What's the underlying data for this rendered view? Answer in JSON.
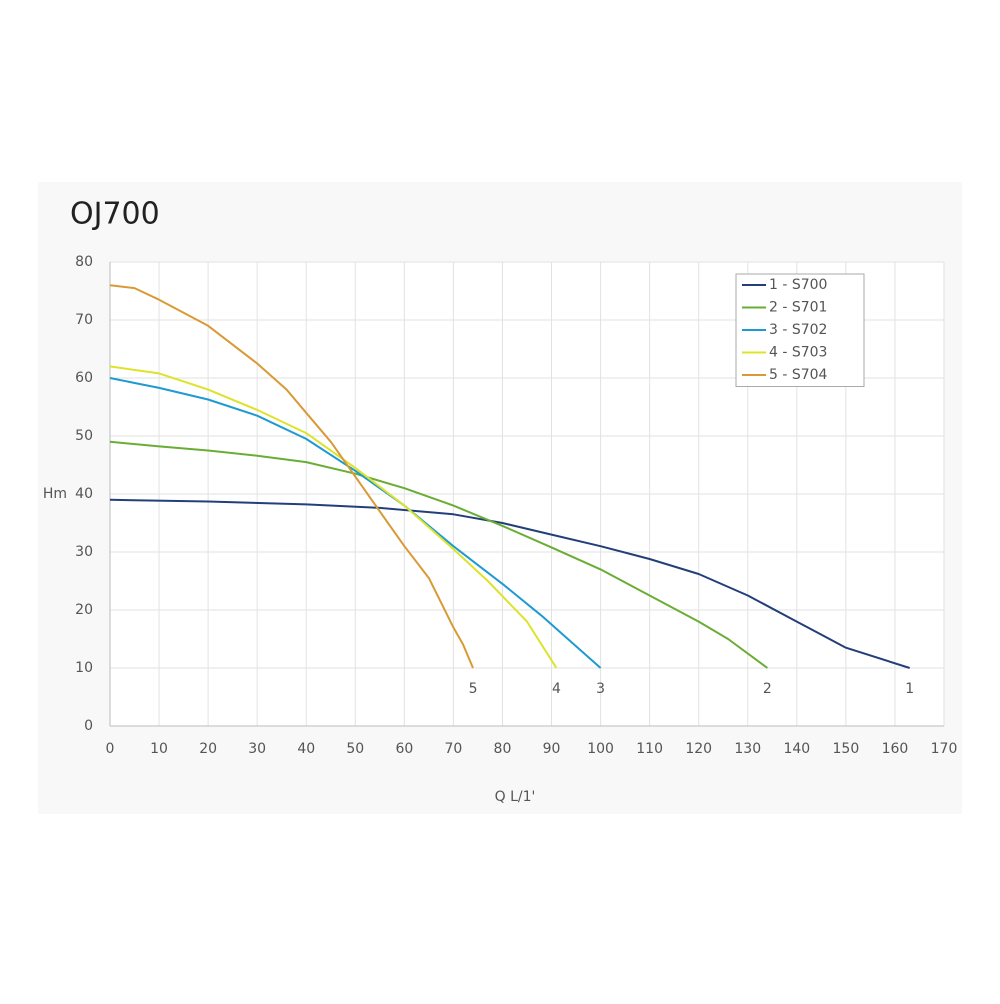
{
  "chart_data": {
    "type": "line",
    "title": "OJ700",
    "y_label": "Hm",
    "x_label": "Q L/1'",
    "xlim": [
      0,
      170
    ],
    "xticks": [
      0,
      10,
      20,
      30,
      40,
      50,
      60,
      70,
      80,
      90,
      100,
      110,
      120,
      130,
      140,
      150,
      160,
      170
    ],
    "ylim": [
      0,
      80
    ],
    "yticks": [
      0,
      10,
      20,
      30,
      40,
      50,
      60,
      70,
      80
    ],
    "grid": true,
    "legend": "upper right",
    "series": [
      {
        "name": "1 - S700",
        "label": "1",
        "color": "#233f7a",
        "x": [
          0,
          20,
          40,
          55,
          70,
          80,
          90,
          100,
          110,
          120,
          130,
          140,
          150,
          163
        ],
        "values": [
          39,
          38.7,
          38.2,
          37.6,
          36.5,
          35,
          33,
          31,
          28.8,
          26.2,
          22.5,
          18,
          13.5,
          10
        ]
      },
      {
        "name": "2 - S701",
        "label": "2",
        "color": "#6aad34",
        "x": [
          0,
          10,
          20,
          30,
          40,
          50,
          60,
          70,
          80,
          90,
          100,
          110,
          120,
          126,
          134
        ],
        "values": [
          49,
          48.2,
          47.5,
          46.6,
          45.5,
          43.5,
          41,
          38,
          34.5,
          30.8,
          27,
          22.5,
          18,
          15,
          10
        ]
      },
      {
        "name": "3 - S702",
        "label": "3",
        "color": "#1e9ad2",
        "x": [
          0,
          10,
          20,
          30,
          40,
          50,
          60,
          70,
          80,
          88,
          100
        ],
        "values": [
          60,
          58.3,
          56.3,
          53.5,
          49.5,
          44,
          38,
          31,
          24.5,
          19,
          10
        ]
      },
      {
        "name": "4 - S703",
        "label": "4",
        "color": "#dde32a",
        "x": [
          0,
          10,
          20,
          30,
          40,
          50,
          60,
          70,
          77,
          85,
          91
        ],
        "values": [
          62,
          60.8,
          58,
          54.5,
          50.5,
          44.5,
          38,
          30.5,
          25,
          18,
          10
        ]
      },
      {
        "name": "5 - S704",
        "label": "5",
        "color": "#d99a35",
        "x": [
          0,
          5,
          10,
          20,
          30,
          36,
          40,
          45,
          50,
          55,
          60,
          65,
          70,
          72,
          74
        ],
        "values": [
          76,
          75.5,
          73.5,
          69,
          62.5,
          58,
          54,
          49,
          43,
          37,
          31,
          25.5,
          17,
          14,
          10
        ]
      }
    ]
  }
}
